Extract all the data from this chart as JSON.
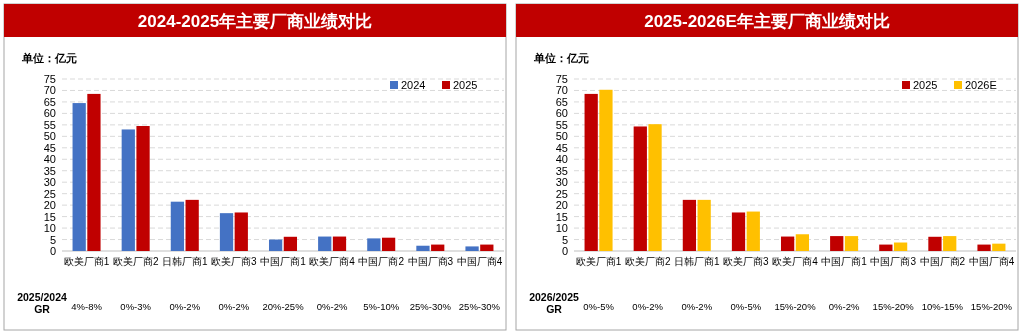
{
  "chart_data": [
    {
      "type": "bar",
      "title": "2024-2025年主要厂商业绩对比",
      "ylabel": "单位：亿元",
      "categories": [
        "欧美厂商1",
        "欧美厂商2",
        "日韩厂商1",
        "欧美厂商3",
        "中国厂商1",
        "欧美厂商4",
        "中国厂商2",
        "中国厂商3",
        "中国厂商4"
      ],
      "series": [
        {
          "name": "2024",
          "color": "#4472c4",
          "values": [
            64.5,
            53,
            21.5,
            16.5,
            5,
            6.3,
            5.5,
            2.3,
            2
          ]
        },
        {
          "name": "2025",
          "color": "#c00000",
          "values": [
            68.5,
            54.5,
            22.3,
            16.8,
            6.2,
            6.3,
            5.8,
            2.8,
            2.8
          ]
        }
      ],
      "ylim": [
        0,
        75
      ],
      "yticks": [
        0,
        5,
        10,
        15,
        20,
        25,
        30,
        35,
        40,
        45,
        50,
        55,
        60,
        65,
        70,
        75
      ],
      "grid": "y",
      "legend": "top right",
      "annotations": [
        "2025/2024 GR",
        "4%-8%",
        "0%-3%",
        "0%-2%",
        "0%-2%",
        "20%-25%",
        "0%-2%",
        "5%-10%",
        "25%-30%",
        "25%-30%"
      ]
    },
    {
      "type": "bar",
      "title": "2025-2026E年主要厂商业绩对比",
      "ylabel": "单位：亿元",
      "categories": [
        "欧美厂商1",
        "欧美厂商2",
        "日韩厂商1",
        "欧美厂商3",
        "欧美厂商4",
        "中国厂商1",
        "中国厂商3",
        "中国厂商2",
        "中国厂商4"
      ],
      "series": [
        {
          "name": "2025",
          "color": "#c00000",
          "values": [
            68.5,
            54.3,
            22.3,
            16.8,
            6.3,
            6.5,
            2.8,
            6.2,
            2.8
          ]
        },
        {
          "name": "2026E",
          "color": "#ffc000",
          "values": [
            70.3,
            55.3,
            22.3,
            17.2,
            7.3,
            6.5,
            3.7,
            6.5,
            3.2
          ]
        }
      ],
      "ylim": [
        0,
        75
      ],
      "yticks": [
        0,
        5,
        10,
        15,
        20,
        25,
        30,
        35,
        40,
        45,
        50,
        55,
        60,
        65,
        70,
        75
      ],
      "grid": "y",
      "legend": "top right",
      "annotations": [
        "2026/2025 GR",
        "0%-5%",
        "0%-2%",
        "0%-2%",
        "0%-5%",
        "15%-20%",
        "0%-2%",
        "15%-20%",
        "10%-15%",
        "15%-20%"
      ]
    }
  ]
}
